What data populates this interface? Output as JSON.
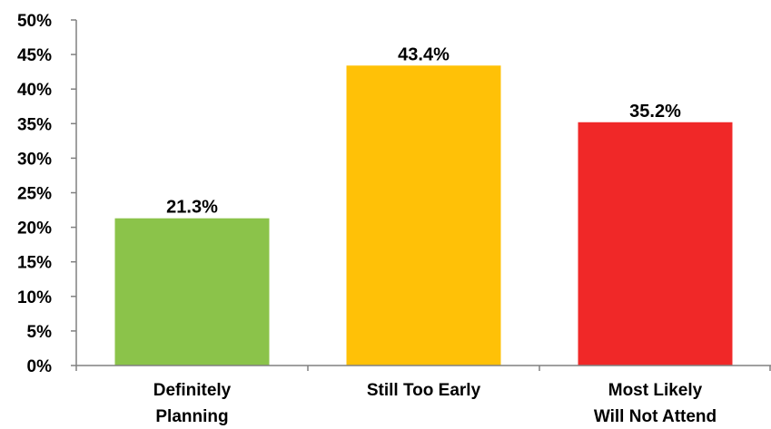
{
  "chart_data": {
    "type": "bar",
    "categories": [
      [
        "Definitely",
        "Planning"
      ],
      [
        "Still Too Early"
      ],
      [
        "Most Likely",
        "Will Not Attend"
      ]
    ],
    "values": [
      21.3,
      43.4,
      35.2
    ],
    "data_labels": [
      "21.3%",
      "43.4%",
      "35.2%"
    ],
    "bar_colors": [
      "#8BC34A",
      "#FFC107",
      "#F02828"
    ],
    "title": "",
    "xlabel": "",
    "ylabel": "",
    "ylim": [
      0,
      50
    ],
    "y_ticks": [
      0,
      5,
      10,
      15,
      20,
      25,
      30,
      35,
      40,
      45,
      50
    ],
    "y_tick_labels": [
      "0%",
      "5%",
      "10%",
      "15%",
      "20%",
      "25%",
      "30%",
      "35%",
      "40%",
      "45%",
      "50%"
    ],
    "grid": false,
    "legend": "none"
  }
}
